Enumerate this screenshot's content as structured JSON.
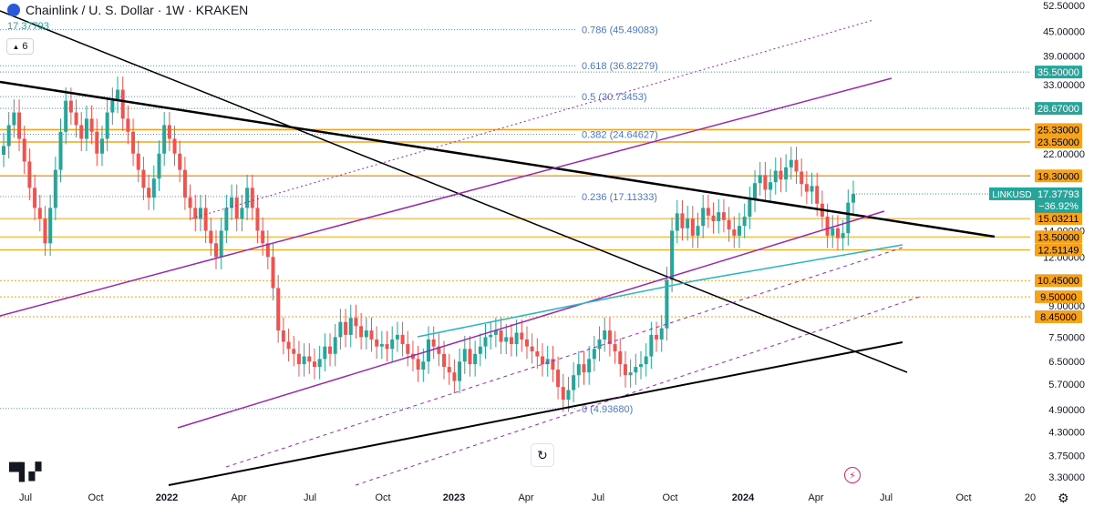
{
  "header": {
    "title": "Chainlink / U. S. Dollar · 1W · KRAKEN",
    "last_price": "17.37793",
    "indicator_count": "6"
  },
  "colors": {
    "up": "#26a69a",
    "down": "#ef5350",
    "orange": "#f7a21b",
    "purple": "#9c27b0",
    "cyan": "#26b5c5",
    "black": "#000000",
    "fib": "#5b8fd8"
  },
  "chart_data": {
    "type": "candlestick",
    "title": "Chainlink / U. S. Dollar · 1W · KRAKEN",
    "y_scale": "log",
    "ylim": [
      3.2,
      53
    ],
    "x_axis_labels": [
      "Jul",
      "Oct",
      "2022",
      "Apr",
      "Jul",
      "Oct",
      "2023",
      "Apr",
      "Jul",
      "Oct",
      "2024",
      "Apr",
      "Jul",
      "Oct",
      "20"
    ],
    "y_axis_labels": [
      "52.50000",
      "45.00000",
      "39.00000",
      "33.00000",
      "22.00000",
      "14.00000",
      "12.00000",
      "9.00000",
      "7.50000",
      "6.50000",
      "5.70000",
      "4.90000",
      "4.30000",
      "3.75000",
      "3.30000"
    ],
    "price_tags": [
      {
        "value": 35.5,
        "label": "35.50000",
        "color": "#26a69a"
      },
      {
        "value": 28.67,
        "label": "28.67000",
        "color": "#26a69a"
      },
      {
        "value": 25.33,
        "label": "25.33000",
        "color": "#f7a21b"
      },
      {
        "value": 23.55,
        "label": "23.55000",
        "color": "#f7a21b"
      },
      {
        "value": 19.3,
        "label": "19.30000",
        "color": "#f7a21b"
      },
      {
        "value": 15.03211,
        "label": "15.03211",
        "color": "#f7a21b"
      },
      {
        "value": 13.5,
        "label": "13.50000",
        "color": "#f7a21b"
      },
      {
        "value": 12.51149,
        "label": "12.51149",
        "color": "#f7a21b"
      },
      {
        "value": 10.45,
        "label": "10.45000",
        "color": "#f7a21b"
      },
      {
        "value": 9.5,
        "label": "9.50000",
        "color": "#f7a21b"
      },
      {
        "value": 8.45,
        "label": "8.45000",
        "color": "#f7a21b"
      }
    ],
    "last_price_tag": {
      "symbol": "LINKUSD",
      "value": 17.37793,
      "label": "17.37793",
      "change": "−36.92%"
    },
    "fib_levels": [
      {
        "value": 45.49083,
        "label": "0.786 (45.49083)"
      },
      {
        "value": 36.82279,
        "label": "0.618 (36.82279)"
      },
      {
        "value": 30.73453,
        "label": "0.5 (30.73453)"
      },
      {
        "value": 24.64627,
        "label": "0.382 (24.64627)"
      },
      {
        "value": 17.11333,
        "label": "0.236 (17.11333)"
      },
      {
        "value": 4.9368,
        "label": "0 (4.93680)"
      }
    ],
    "candles_close": [
      23,
      26,
      28,
      24,
      21,
      18,
      16,
      15,
      13,
      16,
      20,
      25,
      30,
      28,
      26,
      24,
      27,
      25,
      22,
      24,
      28,
      30,
      32,
      27,
      25,
      22,
      20,
      18,
      17,
      19,
      22,
      26,
      24,
      22,
      20,
      17,
      16,
      15,
      16,
      14,
      13,
      12,
      14,
      16,
      17,
      15,
      16,
      18,
      16,
      14,
      13,
      12,
      10,
      7.8,
      7.3,
      7.0,
      6.8,
      6.4,
      6.7,
      6.5,
      6.3,
      6.6,
      7.1,
      6.8,
      7.5,
      8.2,
      7.6,
      8.4,
      8.0,
      7.5,
      7.8,
      7.4,
      7.1,
      7.2,
      7.0,
      7.4,
      7.6,
      7.2,
      6.8,
      6.6,
      6.2,
      6.5,
      7.4,
      7.1,
      6.8,
      6.3,
      6.1,
      5.8,
      6.5,
      7.0,
      6.4,
      6.8,
      7.1,
      7.5,
      7.6,
      7.8,
      7.3,
      7.5,
      7.2,
      7.7,
      7.4,
      7.1,
      6.9,
      6.7,
      6.4,
      6.6,
      6.2,
      5.6,
      5.2,
      5.5,
      6.0,
      6.4,
      6.1,
      6.6,
      7.0,
      7.4,
      7.8,
      7.2,
      6.9,
      6.4,
      6.0,
      6.1,
      6.3,
      6.4,
      6.7,
      7.6,
      7.4,
      7.9,
      10.5,
      14.0,
      15.5,
      14.2,
      15.0,
      13.6,
      14.4,
      16.0,
      15.3,
      14.8,
      15.6,
      14.9,
      14.1,
      13.6,
      14.4,
      15.2,
      16.8,
      18.5,
      19.4,
      17.8,
      18.6,
      19.9,
      18.9,
      20.3,
      21.2,
      19.8,
      18.4,
      17.6,
      18.2,
      16.4,
      15.2,
      13.6,
      14.2,
      13.4,
      13.8,
      16.5,
      17.38
    ],
    "trendlines": "drawn trendlines (black, purple, cyan) and fib levels"
  }
}
